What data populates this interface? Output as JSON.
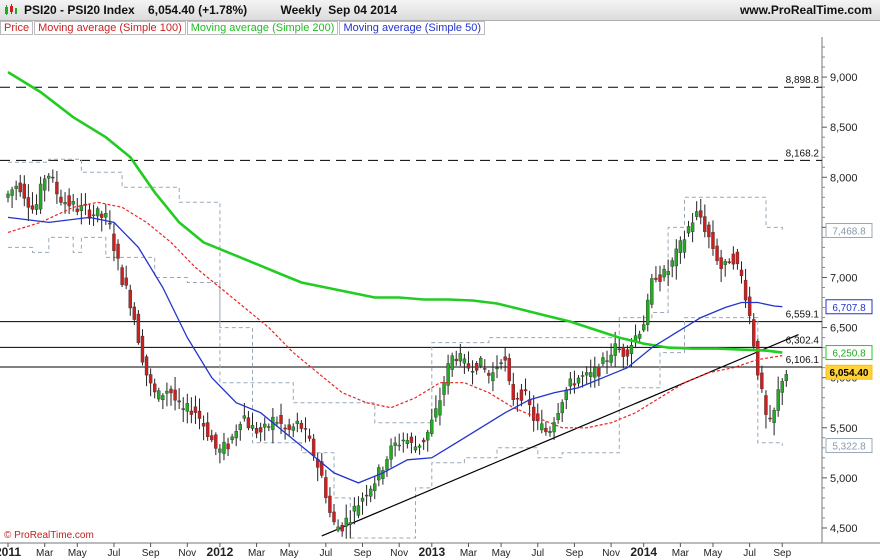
{
  "header": {
    "title": "PSI20 - PSI20 Index    6,054.40 (+1.78%)          Weekly  Sep 04 2014",
    "site": "www.ProRealTime.com",
    "watermark": "© ProRealTime.com"
  },
  "legend": [
    {
      "label": "Price",
      "color": "#cc2020"
    },
    {
      "label": "Moving average (Simple 100)",
      "color": "#cc2020"
    },
    {
      "label": "Moving average (Simple 200)",
      "color": "#22bb22"
    },
    {
      "label": "Moving average (Simple 50)",
      "color": "#2233cc"
    }
  ],
  "colors": {
    "up": "#22aa22",
    "down": "#cc2020",
    "ma100": "#ee2222",
    "ma200": "#22cc22",
    "ma50": "#2233cc",
    "envelope": "#99a8b8",
    "trendline": "#000000"
  },
  "chart_data": {
    "type": "candlestick",
    "ylim": [
      4350,
      9400
    ],
    "y_ticks": [
      {
        "value": 4500,
        "label": "4,500"
      },
      {
        "value": 5000,
        "label": "5,000"
      },
      {
        "value": 5500,
        "label": "5,500"
      },
      {
        "value": 6000,
        "label": "6,000"
      },
      {
        "value": 6500,
        "label": "6,500"
      },
      {
        "value": 7000,
        "label": "7,000"
      },
      {
        "value": 7500,
        "label": "7,500"
      },
      {
        "value": 8000,
        "label": "8,000"
      },
      {
        "value": 8500,
        "label": "8,500"
      },
      {
        "value": 9000,
        "label": "9,000"
      }
    ],
    "x_ticks": [
      {
        "week": 0,
        "label": "2011",
        "bold": true
      },
      {
        "week": 9,
        "label": "Mar"
      },
      {
        "week": 17,
        "label": "May"
      },
      {
        "week": 26,
        "label": "Jul"
      },
      {
        "week": 35,
        "label": "Sep"
      },
      {
        "week": 44,
        "label": "Nov"
      },
      {
        "week": 52,
        "label": "2012",
        "bold": true
      },
      {
        "week": 61,
        "label": "Mar"
      },
      {
        "week": 69,
        "label": "May"
      },
      {
        "week": 78,
        "label": "Jul"
      },
      {
        "week": 87,
        "label": "Sep"
      },
      {
        "week": 96,
        "label": "Nov"
      },
      {
        "week": 104,
        "label": "2013",
        "bold": true
      },
      {
        "week": 113,
        "label": "Mar"
      },
      {
        "week": 121,
        "label": "May"
      },
      {
        "week": 130,
        "label": "Jul"
      },
      {
        "week": 139,
        "label": "Sep"
      },
      {
        "week": 148,
        "label": "Nov"
      },
      {
        "week": 156,
        "label": "2014",
        "bold": true
      },
      {
        "week": 165,
        "label": "Mar"
      },
      {
        "week": 173,
        "label": "May"
      },
      {
        "week": 182,
        "label": "Jul"
      },
      {
        "week": 190,
        "label": "Sep"
      }
    ],
    "weeks": 192,
    "levels": [
      {
        "value": 8898.8,
        "label": "8,898.8",
        "style": "dashed"
      },
      {
        "value": 8168.2,
        "label": "8,168.2",
        "style": "dashed"
      },
      {
        "value": 6559.1,
        "label": "6,559.1",
        "style": "solid"
      },
      {
        "value": 6302.4,
        "label": "6,302.4",
        "style": "solid"
      },
      {
        "value": 6106.1,
        "label": "6,106.1",
        "style": "solid"
      }
    ],
    "value_tags": [
      {
        "value": 7468.8,
        "label": "7,468.8",
        "color": "#99a8b8",
        "bg": "#ffffff",
        "fg": "#8899aa"
      },
      {
        "value": 6707.8,
        "label": "6,707.8",
        "color": "#2233cc",
        "bg": "#ffffff",
        "fg": "#2233cc"
      },
      {
        "value": 6250.8,
        "label": "6,250.8",
        "color": "#22cc22",
        "bg": "#ffffff",
        "fg": "#22aa22"
      },
      {
        "value": 6054.4,
        "label": "6,054.40",
        "color": "#f0c020",
        "bg": "#ffd23a",
        "fg": "#000000"
      },
      {
        "value": 5322.8,
        "label": "5,322.8",
        "color": "#99a8b8",
        "bg": "#ffffff",
        "fg": "#8899aa"
      }
    ],
    "trendline": [
      [
        77,
        4420
      ],
      [
        194,
        6430
      ]
    ],
    "anchors": [
      [
        0,
        7800
      ],
      [
        3,
        7950
      ],
      [
        7,
        7650
      ],
      [
        10,
        8080
      ],
      [
        13,
        7800
      ],
      [
        17,
        7700
      ],
      [
        21,
        7650
      ],
      [
        25,
        7580
      ],
      [
        28,
        7050
      ],
      [
        31,
        6700
      ],
      [
        33,
        6300
      ],
      [
        35,
        5950
      ],
      [
        37,
        5800
      ],
      [
        40,
        5900
      ],
      [
        43,
        5650
      ],
      [
        46,
        5700
      ],
      [
        49,
        5500
      ],
      [
        52,
        5250
      ],
      [
        55,
        5350
      ],
      [
        58,
        5650
      ],
      [
        60,
        5500
      ],
      [
        63,
        5450
      ],
      [
        66,
        5600
      ],
      [
        69,
        5450
      ],
      [
        72,
        5550
      ],
      [
        75,
        5300
      ],
      [
        78,
        4950
      ],
      [
        80,
        4550
      ],
      [
        82,
        4500
      ],
      [
        85,
        4650
      ],
      [
        88,
        4850
      ],
      [
        91,
        5000
      ],
      [
        94,
        5250
      ],
      [
        96,
        5350
      ],
      [
        98,
        5400
      ],
      [
        100,
        5300
      ],
      [
        103,
        5400
      ],
      [
        106,
        5700
      ],
      [
        108,
        6050
      ],
      [
        110,
        6250
      ],
      [
        113,
        6100
      ],
      [
        116,
        6150
      ],
      [
        119,
        6000
      ],
      [
        122,
        6250
      ],
      [
        124,
        5800
      ],
      [
        127,
        5850
      ],
      [
        130,
        5550
      ],
      [
        133,
        5450
      ],
      [
        135,
        5650
      ],
      [
        137,
        5850
      ],
      [
        140,
        6000
      ],
      [
        143,
        6000
      ],
      [
        146,
        6100
      ],
      [
        149,
        6300
      ],
      [
        152,
        6250
      ],
      [
        155,
        6450
      ],
      [
        157,
        6600
      ],
      [
        159,
        7050
      ],
      [
        161,
        7000
      ],
      [
        163,
        7100
      ],
      [
        166,
        7350
      ],
      [
        168,
        7550
      ],
      [
        170,
        7650
      ],
      [
        172,
        7450
      ],
      [
        174,
        7250
      ],
      [
        176,
        7050
      ],
      [
        178,
        7250
      ],
      [
        181,
        6950
      ],
      [
        183,
        6500
      ],
      [
        184,
        6200
      ],
      [
        185,
        5950
      ],
      [
        186,
        5700
      ],
      [
        187,
        5500
      ],
      [
        188,
        5550
      ],
      [
        189,
        5750
      ],
      [
        190,
        5950
      ],
      [
        191,
        6054
      ]
    ],
    "ma50": [
      [
        0,
        7600
      ],
      [
        10,
        7550
      ],
      [
        20,
        7600
      ],
      [
        26,
        7550
      ],
      [
        32,
        7300
      ],
      [
        38,
        6900
      ],
      [
        44,
        6400
      ],
      [
        50,
        6000
      ],
      [
        56,
        5750
      ],
      [
        62,
        5650
      ],
      [
        68,
        5450
      ],
      [
        74,
        5250
      ],
      [
        80,
        5050
      ],
      [
        86,
        4950
      ],
      [
        92,
        5050
      ],
      [
        98,
        5180
      ],
      [
        104,
        5200
      ],
      [
        110,
        5350
      ],
      [
        116,
        5500
      ],
      [
        122,
        5650
      ],
      [
        128,
        5780
      ],
      [
        134,
        5850
      ],
      [
        140,
        5900
      ],
      [
        146,
        6000
      ],
      [
        152,
        6100
      ],
      [
        158,
        6300
      ],
      [
        164,
        6450
      ],
      [
        170,
        6600
      ],
      [
        176,
        6700
      ],
      [
        180,
        6750
      ],
      [
        184,
        6750
      ],
      [
        188,
        6715
      ],
      [
        190,
        6708
      ]
    ],
    "ma100": [
      [
        0,
        7450
      ],
      [
        8,
        7550
      ],
      [
        16,
        7700
      ],
      [
        22,
        7750
      ],
      [
        28,
        7700
      ],
      [
        34,
        7550
      ],
      [
        40,
        7350
      ],
      [
        46,
        7100
      ],
      [
        52,
        6900
      ],
      [
        58,
        6700
      ],
      [
        64,
        6500
      ],
      [
        70,
        6250
      ],
      [
        76,
        6050
      ],
      [
        82,
        5850
      ],
      [
        88,
        5750
      ],
      [
        94,
        5700
      ],
      [
        100,
        5800
      ],
      [
        106,
        5950
      ],
      [
        112,
        5950
      ],
      [
        118,
        5850
      ],
      [
        124,
        5700
      ],
      [
        130,
        5600
      ],
      [
        136,
        5500
      ],
      [
        142,
        5500
      ],
      [
        148,
        5550
      ],
      [
        154,
        5650
      ],
      [
        160,
        5800
      ],
      [
        166,
        5950
      ],
      [
        172,
        6050
      ],
      [
        178,
        6100
      ],
      [
        184,
        6180
      ],
      [
        190,
        6220
      ]
    ],
    "ma200": [
      [
        0,
        9050
      ],
      [
        8,
        8850
      ],
      [
        16,
        8600
      ],
      [
        24,
        8400
      ],
      [
        30,
        8200
      ],
      [
        36,
        7850
      ],
      [
        42,
        7550
      ],
      [
        48,
        7350
      ],
      [
        54,
        7250
      ],
      [
        60,
        7150
      ],
      [
        66,
        7050
      ],
      [
        72,
        6950
      ],
      [
        78,
        6900
      ],
      [
        84,
        6850
      ],
      [
        90,
        6800
      ],
      [
        96,
        6800
      ],
      [
        102,
        6780
      ],
      [
        108,
        6780
      ],
      [
        114,
        6770
      ],
      [
        120,
        6740
      ],
      [
        126,
        6680
      ],
      [
        132,
        6620
      ],
      [
        138,
        6560
      ],
      [
        144,
        6480
      ],
      [
        150,
        6400
      ],
      [
        156,
        6340
      ],
      [
        162,
        6300
      ],
      [
        168,
        6290
      ],
      [
        174,
        6290
      ],
      [
        180,
        6280
      ],
      [
        186,
        6270
      ],
      [
        190,
        6250
      ]
    ],
    "envelope_upper": [
      [
        0,
        8150
      ],
      [
        6,
        8150
      ],
      [
        10,
        8180
      ],
      [
        16,
        8180
      ],
      [
        18,
        8050
      ],
      [
        24,
        8050
      ],
      [
        28,
        7900
      ],
      [
        34,
        7900
      ],
      [
        42,
        7750
      ],
      [
        50,
        7750
      ],
      [
        52,
        5950
      ],
      [
        62,
        5950
      ],
      [
        70,
        5750
      ],
      [
        80,
        5750
      ],
      [
        90,
        5550
      ],
      [
        100,
        5550
      ],
      [
        104,
        6350
      ],
      [
        118,
        6400
      ],
      [
        126,
        6400
      ],
      [
        136,
        6400
      ],
      [
        150,
        6600
      ],
      [
        158,
        6650
      ],
      [
        162,
        7500
      ],
      [
        166,
        7800
      ],
      [
        178,
        7800
      ],
      [
        184,
        7800
      ],
      [
        186,
        7500
      ],
      [
        190,
        7470
      ]
    ],
    "envelope_lower": [
      [
        0,
        7300
      ],
      [
        6,
        7250
      ],
      [
        10,
        7400
      ],
      [
        16,
        7250
      ],
      [
        18,
        7400
      ],
      [
        24,
        7200
      ],
      [
        34,
        7200
      ],
      [
        36,
        7000
      ],
      [
        44,
        6950
      ],
      [
        50,
        6950
      ],
      [
        52,
        6500
      ],
      [
        56,
        6500
      ],
      [
        60,
        5350
      ],
      [
        66,
        5350
      ],
      [
        72,
        5250
      ],
      [
        80,
        4800
      ],
      [
        84,
        4400
      ],
      [
        96,
        4400
      ],
      [
        100,
        4900
      ],
      [
        104,
        5150
      ],
      [
        112,
        5200
      ],
      [
        120,
        5300
      ],
      [
        130,
        5200
      ],
      [
        136,
        5250
      ],
      [
        146,
        5250
      ],
      [
        150,
        5900
      ],
      [
        160,
        6250
      ],
      [
        166,
        6600
      ],
      [
        176,
        6600
      ],
      [
        184,
        5350
      ],
      [
        190,
        5320
      ]
    ]
  }
}
